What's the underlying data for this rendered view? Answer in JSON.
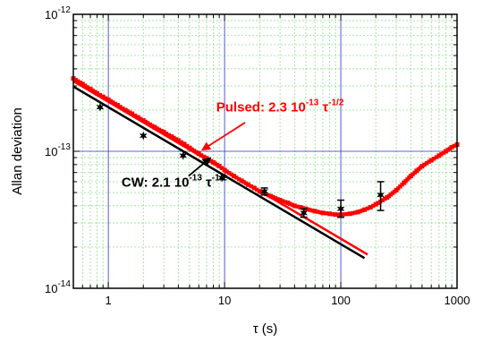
{
  "chart_data": {
    "type": "scatter",
    "title": "",
    "xlabel": "τ (s)",
    "ylabel": "Allan deviation",
    "x_scale": "log",
    "y_scale": "log",
    "xlim": [
      0.5,
      1000
    ],
    "ylim": [
      1e-14,
      1e-12
    ],
    "x_ticks": [
      {
        "value": 1,
        "label": "1"
      },
      {
        "value": 10,
        "label": "10"
      },
      {
        "value": 100,
        "label": "100"
      },
      {
        "value": 1000,
        "label": "1000"
      }
    ],
    "y_ticks": [
      {
        "value": 1e-14,
        "base": "10",
        "exp": "-14"
      },
      {
        "value": 1e-13,
        "base": "10",
        "exp": "-13"
      },
      {
        "value": 1e-12,
        "base": "10",
        "exp": "-12"
      }
    ],
    "grid": true,
    "colors": {
      "pulsed": "#ff0000",
      "cw": "#000000",
      "grid_major": "#3030c0",
      "grid_minor": "#7fdc7f"
    },
    "series": [
      {
        "key": "pulsed",
        "marker": "square",
        "color": "#ff0000",
        "points": [
          [
            0.5,
            3.4e-13
          ],
          [
            0.6,
            3.1e-13
          ],
          [
            0.7,
            2.85e-13
          ],
          [
            0.8,
            2.65e-13
          ],
          [
            0.9,
            2.5e-13
          ],
          [
            1.0,
            2.38e-13
          ],
          [
            1.2,
            2.17e-13
          ],
          [
            1.4,
            2e-13
          ],
          [
            1.6,
            1.88e-13
          ],
          [
            1.8,
            1.77e-13
          ],
          [
            2.0,
            1.68e-13
          ],
          [
            2.5,
            1.5e-13
          ],
          [
            3.0,
            1.38e-13
          ],
          [
            3.5,
            1.28e-13
          ],
          [
            4.0,
            1.2e-13
          ],
          [
            4.5,
            1.13e-13
          ],
          [
            5.0,
            1.06e-13
          ],
          [
            6.0,
            9.6e-14
          ],
          [
            7.0,
            8.9e-14
          ],
          [
            8.0,
            8.3e-14
          ],
          [
            9.0,
            7.8e-14
          ],
          [
            10,
            7.3e-14
          ],
          [
            12,
            6.6e-14
          ],
          [
            14,
            6.1e-14
          ],
          [
            16,
            5.7e-14
          ],
          [
            18,
            5.4e-14
          ],
          [
            20,
            5.1e-14
          ],
          [
            25,
            4.7e-14
          ],
          [
            30,
            4.4e-14
          ],
          [
            35,
            4.2e-14
          ],
          [
            40,
            4e-14
          ],
          [
            45,
            3.9e-14
          ],
          [
            50,
            3.8e-14
          ],
          [
            60,
            3.65e-14
          ],
          [
            70,
            3.55e-14
          ],
          [
            80,
            3.5e-14
          ],
          [
            90,
            3.45e-14
          ],
          [
            100,
            3.45e-14
          ],
          [
            120,
            3.5e-14
          ],
          [
            140,
            3.6e-14
          ],
          [
            160,
            3.75e-14
          ],
          [
            180,
            3.9e-14
          ],
          [
            200,
            4.1e-14
          ],
          [
            250,
            4.6e-14
          ],
          [
            300,
            5.2e-14
          ],
          [
            350,
            5.9e-14
          ],
          [
            400,
            6.6e-14
          ],
          [
            450,
            7.2e-14
          ],
          [
            500,
            7.8e-14
          ],
          [
            600,
            8.6e-14
          ],
          [
            700,
            9.3e-14
          ],
          [
            800,
            1e-13
          ],
          [
            900,
            1.07e-13
          ],
          [
            1000,
            1.12e-13
          ]
        ]
      },
      {
        "key": "cw",
        "marker": "star",
        "color": "#000000",
        "points": [
          [
            0.85,
            2.1e-13
          ],
          [
            2.0,
            1.3e-13
          ],
          [
            4.4,
            9.3e-14
          ],
          [
            9.5,
            6.4e-14
          ],
          [
            22,
            5.1e-14
          ],
          [
            48,
            3.55e-14
          ],
          [
            100,
            3.8e-14
          ],
          [
            220,
            4.8e-14
          ]
        ],
        "error_low": [
          null,
          null,
          null,
          null,
          4.8e-14,
          3.3e-14,
          3.3e-14,
          3.7e-14
        ],
        "error_high": [
          null,
          null,
          null,
          null,
          5.4e-14,
          3.8e-14,
          4.4e-14,
          6e-14
        ]
      }
    ],
    "fits": [
      {
        "key": "pulsed_fit",
        "coefficient": 2.3e-13,
        "exponent": -0.5,
        "x_range": [
          0.5,
          170
        ],
        "color": "#ff0000"
      },
      {
        "key": "cw_fit",
        "coefficient": 2.1e-13,
        "exponent": -0.5,
        "x_range": [
          0.5,
          160
        ],
        "color": "#000000"
      }
    ],
    "annotations": [
      {
        "key": "pulsed_label",
        "text_main": "Pulsed: 2.3 10",
        "text_exp": "-13",
        "text_tau": " τ",
        "text_tau_exp": "-1/2",
        "color": "#ff0000",
        "text_at": [
          30,
          1.95e-13
        ],
        "arrow_from": [
          15,
          1.62e-13
        ],
        "arrow_to": [
          6.5,
          1.03e-13
        ]
      },
      {
        "key": "cw_label",
        "text_main": "CW: 2.1 10",
        "text_exp": "-13",
        "text_tau": " τ",
        "text_tau_exp": "-1/2",
        "color": "#000000",
        "text_at": [
          3.7,
          5.5e-14
        ],
        "arrow_from": [
          4.9,
          6.6e-14
        ],
        "arrow_to": [
          7.5,
          8.9e-14
        ]
      }
    ]
  }
}
